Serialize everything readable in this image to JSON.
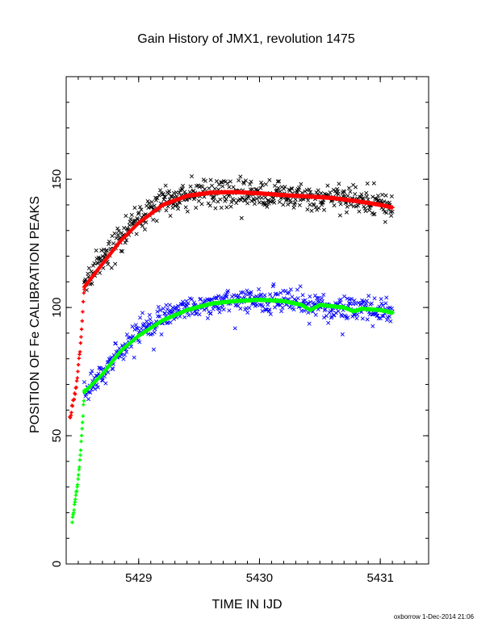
{
  "chart_data": {
    "type": "scatter",
    "title": "Gain History of JMX1, revolution 1475",
    "xlabel": "TIME IN IJD",
    "ylabel": "POSITION OF Fe CALIBRATION PEAKS",
    "xlim": [
      5428.4,
      5431.4
    ],
    "ylim": [
      0,
      190
    ],
    "xticks": [
      5429,
      5430,
      5431
    ],
    "yticks": [
      0,
      50,
      100,
      150
    ],
    "grid": false,
    "footer": "oxborrow 1-Dec-2014 21:06",
    "colors": {
      "upper_points": "#000000",
      "upper_fit": "#ff0000",
      "lower_points": "#0000ff",
      "lower_fit": "#00ff00"
    },
    "series": [
      {
        "role": "upper-points",
        "marker": "x",
        "color": "#000000",
        "trend": [
          [
            5428.55,
            109
          ],
          [
            5428.7,
            118
          ],
          [
            5428.85,
            127
          ],
          [
            5429.0,
            135
          ],
          [
            5429.2,
            141
          ],
          [
            5429.4,
            144
          ],
          [
            5429.6,
            145
          ],
          [
            5429.8,
            145
          ],
          [
            5430.0,
            144.5
          ],
          [
            5430.2,
            143.5
          ],
          [
            5430.4,
            143
          ],
          [
            5430.6,
            142.5
          ],
          [
            5430.8,
            142
          ],
          [
            5431.0,
            141
          ],
          [
            5431.1,
            140
          ]
        ],
        "x_range": [
          5428.55,
          5431.1
        ],
        "scatter": 3.5
      },
      {
        "role": "upper-fit",
        "marker": "+",
        "color": "#ff0000",
        "trend": [
          [
            5428.55,
            108
          ],
          [
            5428.7,
            117
          ],
          [
            5428.85,
            126
          ],
          [
            5429.0,
            133
          ],
          [
            5429.2,
            140
          ],
          [
            5429.4,
            143.5
          ],
          [
            5429.6,
            144.8
          ],
          [
            5429.8,
            145
          ],
          [
            5430.0,
            144.5
          ],
          [
            5430.2,
            143.8
          ],
          [
            5430.4,
            143.3
          ],
          [
            5430.6,
            142.7
          ],
          [
            5430.8,
            141.5
          ],
          [
            5431.0,
            140
          ],
          [
            5431.1,
            139
          ]
        ],
        "x_range": [
          5428.55,
          5431.1
        ]
      },
      {
        "role": "upper-ramp",
        "marker": "+",
        "color": "#ff0000",
        "trend": [
          [
            5428.43,
            57
          ],
          [
            5428.48,
            68
          ],
          [
            5428.52,
            86
          ],
          [
            5428.55,
            108
          ]
        ],
        "x_range": [
          5428.43,
          5428.55
        ]
      },
      {
        "role": "lower-points",
        "marker": "x",
        "color": "#0000ff",
        "trend": [
          [
            5428.55,
            67
          ],
          [
            5428.7,
            75
          ],
          [
            5428.85,
            84
          ],
          [
            5429.0,
            91
          ],
          [
            5429.2,
            96
          ],
          [
            5429.4,
            100
          ],
          [
            5429.6,
            102
          ],
          [
            5429.8,
            103
          ],
          [
            5430.0,
            103
          ],
          [
            5430.2,
            102.5
          ],
          [
            5430.4,
            101
          ],
          [
            5430.6,
            100
          ],
          [
            5430.8,
            99
          ],
          [
            5431.0,
            98.5
          ],
          [
            5431.1,
            97
          ]
        ],
        "x_range": [
          5428.55,
          5431.1
        ],
        "scatter": 3
      },
      {
        "role": "lower-fit",
        "marker": "+",
        "color": "#00ff00",
        "trend": [
          [
            5428.55,
            67
          ],
          [
            5428.7,
            74
          ],
          [
            5428.85,
            83
          ],
          [
            5429.0,
            89
          ],
          [
            5429.2,
            95
          ],
          [
            5429.4,
            99
          ],
          [
            5429.6,
            101.5
          ],
          [
            5429.8,
            102.5
          ],
          [
            5430.0,
            103
          ],
          [
            5430.2,
            102.5
          ],
          [
            5430.35,
            101
          ],
          [
            5430.42,
            99
          ],
          [
            5430.5,
            101
          ],
          [
            5430.7,
            100
          ],
          [
            5430.78,
            98.5
          ],
          [
            5430.85,
            99.5
          ],
          [
            5431.0,
            99
          ],
          [
            5431.1,
            98
          ]
        ],
        "x_range": [
          5428.55,
          5431.1
        ]
      },
      {
        "role": "lower-ramp",
        "marker": "+",
        "color": "#00ff00",
        "trend": [
          [
            5428.45,
            17
          ],
          [
            5428.48,
            26
          ],
          [
            5428.51,
            38
          ],
          [
            5428.53,
            52
          ],
          [
            5428.55,
            67
          ]
        ],
        "x_range": [
          5428.45,
          5428.55
        ]
      }
    ]
  }
}
